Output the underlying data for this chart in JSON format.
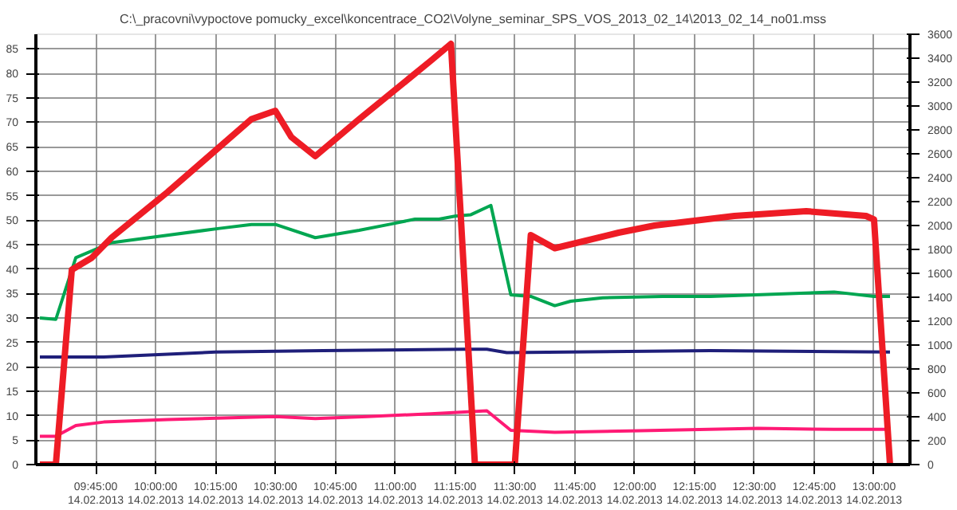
{
  "chart_data": {
    "type": "line",
    "title": "C:\\_pracovni\\vypoctove pomucky_excel\\koncentrace_CO2\\Volyne_seminar_SPS_VOS_2013_02_14\\2013_02_14_no01.mss",
    "xlim": [
      "2013-02-14T09:30",
      "2013-02-14T13:09"
    ],
    "ylim": [
      0,
      88
    ],
    "y2lim": [
      0,
      3600
    ],
    "xticks": [
      {
        "value": "2013-02-14T09:45",
        "label": "09:45:00\n14.02.2013"
      },
      {
        "value": "2013-02-14T10:00",
        "label": "10:00:00\n14.02.2013"
      },
      {
        "value": "2013-02-14T10:15",
        "label": "10:15:00\n14.02.2013"
      },
      {
        "value": "2013-02-14T10:30",
        "label": "10:30:00\n14.02.2013"
      },
      {
        "value": "2013-02-14T10:45",
        "label": "10:45:00\n14.02.2013"
      },
      {
        "value": "2013-02-14T11:00",
        "label": "11:00:00\n14.02.2013"
      },
      {
        "value": "2013-02-14T11:15",
        "label": "11:15:00\n14.02.2013"
      },
      {
        "value": "2013-02-14T11:30",
        "label": "11:30:00\n14.02.2013"
      },
      {
        "value": "2013-02-14T11:45",
        "label": "11:45:00\n14.02.2013"
      },
      {
        "value": "2013-02-14T12:00",
        "label": "12:00:00\n14.02.2013"
      },
      {
        "value": "2013-02-14T12:15",
        "label": "12:15:00\n14.02.2013"
      },
      {
        "value": "2013-02-14T12:30",
        "label": "12:30:00\n14.02.2013"
      },
      {
        "value": "2013-02-14T12:45",
        "label": "12:45:00\n14.02.2013"
      },
      {
        "value": "2013-02-14T13:00",
        "label": "13:00:00\n14.02.2013"
      }
    ],
    "yticks": [
      0,
      5,
      10,
      15,
      20,
      25,
      30,
      35,
      40,
      45,
      50,
      55,
      60,
      65,
      70,
      75,
      80,
      85
    ],
    "y2ticks": [
      0,
      200,
      400,
      600,
      800,
      1000,
      1200,
      1400,
      1600,
      1800,
      2000,
      2200,
      2400,
      2600,
      2800,
      3000,
      3200,
      3400,
      3600
    ],
    "grid": true,
    "marker": "none",
    "line_style": "solid",
    "series": [
      {
        "color": "#00a651",
        "x": [
          "2013-02-14T09:31",
          "2013-02-14T09:35",
          "2013-02-14T09:40",
          "2013-02-14T09:49",
          "2013-02-14T10:01",
          "2013-02-14T10:16",
          "2013-02-14T10:24",
          "2013-02-14T10:30",
          "2013-02-14T10:40",
          "2013-02-14T10:51",
          "2013-02-14T10:59",
          "2013-02-14T11:05",
          "2013-02-14T11:11",
          "2013-02-14T11:15",
          "2013-02-14T11:19",
          "2013-02-14T11:24",
          "2013-02-14T11:29",
          "2013-02-14T11:34",
          "2013-02-14T11:40",
          "2013-02-14T11:44",
          "2013-02-14T11:52",
          "2013-02-14T12:07",
          "2013-02-14T12:19",
          "2013-02-14T12:50",
          "2013-02-14T13:00",
          "2013-02-14T13:04"
        ],
        "values": [
          30.0,
          29.7,
          42.3,
          45.4,
          46.7,
          48.3,
          49.1,
          49.1,
          46.4,
          47.9,
          49.2,
          50.2,
          50.2,
          50.8,
          51.1,
          53.0,
          34.7,
          34.4,
          32.5,
          33.4,
          34.1,
          34.4,
          34.4,
          35.3,
          34.4,
          34.4
        ]
      },
      {
        "color": "#1f1f7a",
        "x": [
          "2013-02-14T09:31",
          "2013-02-14T09:47",
          "2013-02-14T10:15",
          "2013-02-14T10:42",
          "2013-02-14T11:17",
          "2013-02-14T11:23",
          "2013-02-14T11:28",
          "2013-02-14T12:19",
          "2013-02-14T13:04"
        ],
        "values": [
          22.0,
          22.0,
          23.0,
          23.3,
          23.6,
          23.6,
          22.9,
          23.3,
          23.0
        ]
      },
      {
        "color": "#ff1a75",
        "x": [
          "2013-02-14T09:31",
          "2013-02-14T09:35",
          "2013-02-14T09:40",
          "2013-02-14T09:47",
          "2013-02-14T10:03",
          "2013-02-14T10:30",
          "2013-02-14T10:40",
          "2013-02-14T10:53",
          "2013-02-14T11:09",
          "2013-02-14T11:23",
          "2013-02-14T11:29",
          "2013-02-14T11:40",
          "2013-02-14T11:59",
          "2013-02-14T12:31",
          "2013-02-14T12:50",
          "2013-02-14T13:04"
        ],
        "values": [
          5.8,
          5.8,
          8.0,
          8.7,
          9.2,
          9.8,
          9.4,
          9.8,
          10.4,
          11.0,
          7.0,
          6.6,
          6.9,
          7.4,
          7.2,
          7.2
        ]
      },
      {
        "color": "#ee1c25",
        "axis": "y2",
        "x": [
          "2013-02-14T09:31",
          "2013-02-14T09:35",
          "2013-02-14T09:39",
          "2013-02-14T09:44",
          "2013-02-14T09:49",
          "2013-02-14T10:03",
          "2013-02-14T10:24",
          "2013-02-14T10:30",
          "2013-02-14T10:34",
          "2013-02-14T10:40",
          "2013-02-14T10:51",
          "2013-02-14T11:09",
          "2013-02-14T11:14",
          "2013-02-14T11:20",
          "2013-02-14T11:30",
          "2013-02-14T11:34",
          "2013-02-14T11:40",
          "2013-02-14T11:56",
          "2013-02-14T12:05",
          "2013-02-14T12:25",
          "2013-02-14T12:43",
          "2013-02-14T12:58",
          "2013-02-14T13:00",
          "2013-02-14T13:04"
        ],
        "values": [
          0,
          0,
          1630,
          1730,
          1900,
          2280,
          2890,
          2960,
          2740,
          2580,
          2890,
          3380,
          3520,
          0,
          0,
          1920,
          1810,
          1940,
          2000,
          2080,
          2120,
          2080,
          2050,
          0
        ]
      }
    ]
  }
}
